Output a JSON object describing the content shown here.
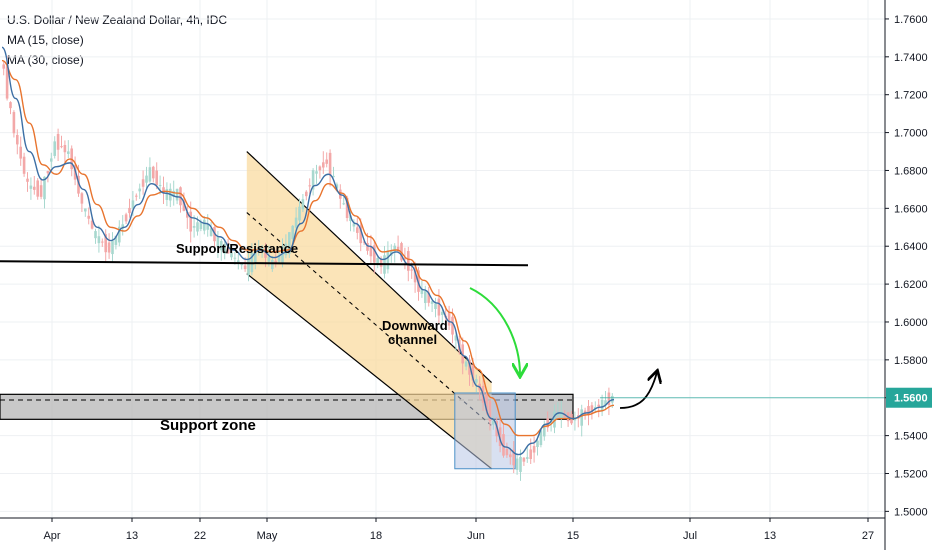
{
  "legend": {
    "title": "U.S. Dollar / New Zealand Dollar, 4h, IDC",
    "ma_fast": "MA (15, close)",
    "ma_slow": "MA (30, close)"
  },
  "colors": {
    "up_candle": "#a8d8cf",
    "down_candle": "#f3a8a8",
    "ma_fast": "#3d6fa5",
    "ma_slow": "#e8742e",
    "channel_fill": "#f9d89a",
    "support_zone_fill": "#b5b5b5",
    "range_box_fill": "#b8c7e6",
    "price_label_bg": "#26a69a",
    "green_arrow": "#2ddc3a"
  },
  "chart_data": {
    "type": "candlestick",
    "title": "U.S. Dollar / New Zealand Dollar, 4h, IDC",
    "y_range": [
      1.4965,
      1.77
    ],
    "y_ticks": [
      "1.7600",
      "1.7400",
      "1.7200",
      "1.7000",
      "1.6800",
      "1.6600",
      "1.6400",
      "1.6200",
      "1.6000",
      "1.5800",
      "1.5600",
      "1.5400",
      "1.5200",
      "1.5000"
    ],
    "x_ticks": [
      "Apr",
      "13",
      "22",
      "May",
      "18",
      "Jun",
      "15",
      "Jul",
      "13",
      "27"
    ],
    "last_price": "1.5600",
    "close_path": [
      [
        0,
        1.741
      ],
      [
        1,
        1.7
      ],
      [
        2,
        1.672
      ],
      [
        3,
        1.668
      ],
      [
        4,
        1.695
      ],
      [
        5,
        1.689
      ],
      [
        6,
        1.662
      ],
      [
        7,
        1.645
      ],
      [
        8,
        1.638
      ],
      [
        9,
        1.652
      ],
      [
        10,
        1.668
      ],
      [
        11,
        1.68
      ],
      [
        12,
        1.668
      ],
      [
        13,
        1.668
      ],
      [
        14,
        1.65
      ],
      [
        15,
        1.652
      ],
      [
        16,
        1.642
      ],
      [
        17,
        1.635
      ],
      [
        18,
        1.628
      ],
      [
        19,
        1.64
      ],
      [
        20,
        1.63
      ],
      [
        21,
        1.64
      ],
      [
        22,
        1.66
      ],
      [
        23,
        1.678
      ],
      [
        24,
        1.685
      ],
      [
        25,
        1.665
      ],
      [
        26,
        1.65
      ],
      [
        27,
        1.638
      ],
      [
        28,
        1.63
      ],
      [
        29,
        1.64
      ],
      [
        30,
        1.63
      ],
      [
        31,
        1.615
      ],
      [
        32,
        1.608
      ],
      [
        33,
        1.6
      ],
      [
        34,
        1.58
      ],
      [
        35,
        1.568
      ],
      [
        36,
        1.55
      ],
      [
        37,
        1.532
      ],
      [
        38,
        1.525
      ],
      [
        39,
        1.53
      ],
      [
        40,
        1.545
      ],
      [
        41,
        1.552
      ],
      [
        42,
        1.548
      ],
      [
        43,
        1.552
      ],
      [
        44,
        1.556
      ],
      [
        45,
        1.56
      ]
    ],
    "ma_fast_path": [
      [
        0,
        1.745
      ],
      [
        1,
        1.718
      ],
      [
        2,
        1.69
      ],
      [
        3,
        1.675
      ],
      [
        4,
        1.682
      ],
      [
        5,
        1.684
      ],
      [
        6,
        1.67
      ],
      [
        7,
        1.65
      ],
      [
        8,
        1.643
      ],
      [
        9,
        1.65
      ],
      [
        10,
        1.662
      ],
      [
        11,
        1.673
      ],
      [
        12,
        1.668
      ],
      [
        13,
        1.666
      ],
      [
        14,
        1.655
      ],
      [
        15,
        1.652
      ],
      [
        16,
        1.645
      ],
      [
        17,
        1.638
      ],
      [
        18,
        1.633
      ],
      [
        19,
        1.638
      ],
      [
        20,
        1.634
      ],
      [
        21,
        1.637
      ],
      [
        22,
        1.652
      ],
      [
        23,
        1.672
      ],
      [
        24,
        1.678
      ],
      [
        25,
        1.667
      ],
      [
        26,
        1.652
      ],
      [
        27,
        1.64
      ],
      [
        28,
        1.633
      ],
      [
        29,
        1.637
      ],
      [
        30,
        1.63
      ],
      [
        31,
        1.617
      ],
      [
        32,
        1.61
      ],
      [
        33,
        1.6
      ],
      [
        34,
        1.582
      ],
      [
        35,
        1.566
      ],
      [
        36,
        1.549
      ],
      [
        37,
        1.534
      ],
      [
        38,
        1.53
      ],
      [
        39,
        1.536
      ],
      [
        40,
        1.546
      ],
      [
        41,
        1.552
      ],
      [
        42,
        1.549
      ],
      [
        43,
        1.552
      ],
      [
        44,
        1.555
      ],
      [
        45,
        1.559
      ]
    ],
    "ma_slow_path": [
      [
        0,
        1.738
      ],
      [
        1,
        1.728
      ],
      [
        2,
        1.705
      ],
      [
        3,
        1.683
      ],
      [
        4,
        1.678
      ],
      [
        5,
        1.686
      ],
      [
        6,
        1.678
      ],
      [
        7,
        1.662
      ],
      [
        8,
        1.65
      ],
      [
        9,
        1.648
      ],
      [
        10,
        1.656
      ],
      [
        11,
        1.667
      ],
      [
        12,
        1.669
      ],
      [
        13,
        1.668
      ],
      [
        14,
        1.66
      ],
      [
        15,
        1.655
      ],
      [
        16,
        1.65
      ],
      [
        17,
        1.643
      ],
      [
        18,
        1.638
      ],
      [
        19,
        1.638
      ],
      [
        20,
        1.637
      ],
      [
        21,
        1.638
      ],
      [
        22,
        1.648
      ],
      [
        23,
        1.664
      ],
      [
        24,
        1.673
      ],
      [
        25,
        1.668
      ],
      [
        26,
        1.656
      ],
      [
        27,
        1.645
      ],
      [
        28,
        1.637
      ],
      [
        29,
        1.638
      ],
      [
        30,
        1.633
      ],
      [
        31,
        1.622
      ],
      [
        32,
        1.614
      ],
      [
        33,
        1.605
      ],
      [
        34,
        1.59
      ],
      [
        35,
        1.575
      ],
      [
        36,
        1.56
      ],
      [
        37,
        1.546
      ],
      [
        38,
        1.54
      ],
      [
        39,
        1.54
      ],
      [
        40,
        1.545
      ],
      [
        41,
        1.549
      ],
      [
        42,
        1.549
      ],
      [
        43,
        1.551
      ],
      [
        44,
        1.553
      ],
      [
        45,
        1.556
      ]
    ],
    "annotations": {
      "support_resistance_label": "Support/Resistance",
      "channel_label_1": "Downward",
      "channel_label_2": "channel",
      "support_zone_label": "Support zone",
      "support_resistance_level": 1.631,
      "support_zone_range": [
        1.5486,
        1.5618
      ],
      "support_zone_mid": 1.5588,
      "channel_top_start": [
        18,
        1.69
      ],
      "channel_top_end": [
        36,
        1.568
      ],
      "channel_bottom_start": [
        18,
        1.6255
      ],
      "channel_bottom_end": [
        36,
        1.5225
      ],
      "range_box": [
        [
          33,
          1.5625
        ],
        [
          37,
          1.5225
        ]
      ]
    }
  }
}
